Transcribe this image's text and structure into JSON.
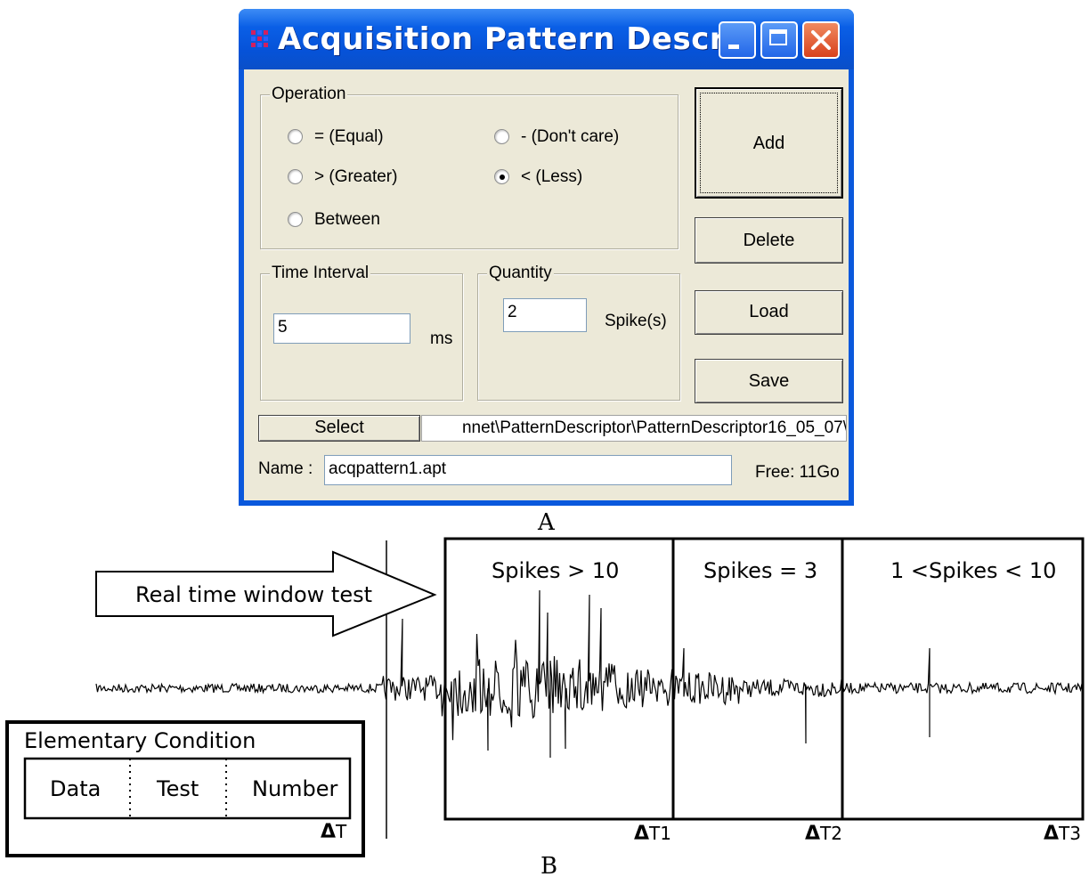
{
  "window": {
    "title": "Acquisition Pattern Descr...",
    "app_icon": "grid-app-icon",
    "controls": {
      "minimize": "minimize-icon",
      "maximize": "maximize-icon",
      "close": "close-icon"
    }
  },
  "operation": {
    "legend": "Operation",
    "options": [
      {
        "label": "= (Equal)",
        "selected": false
      },
      {
        "label": "- (Don't care)",
        "selected": false
      },
      {
        "label": "> (Greater)",
        "selected": false
      },
      {
        "label": "< (Less)",
        "selected": true
      },
      {
        "label": "Between",
        "selected": false
      }
    ]
  },
  "time_interval": {
    "legend": "Time Interval",
    "value": "5",
    "unit": "ms"
  },
  "quantity": {
    "legend": "Quantity",
    "value": "2",
    "unit": "Spike(s)"
  },
  "buttons": {
    "add": "Add",
    "delete": "Delete",
    "load": "Load",
    "save": "Save",
    "select": "Select"
  },
  "path": {
    "value": "nnet\\PatternDescriptor\\PatternDescriptor16_05_07\\"
  },
  "name": {
    "label": "Name :",
    "value": "acqpattern1.apt"
  },
  "free": "Free: 11Go",
  "captions": {
    "a": "A",
    "b": "B"
  },
  "diagram": {
    "arrow_label": "Real time window test",
    "windows": [
      "Spikes > 10",
      "Spikes = 3",
      "1 <Spikes < 10"
    ],
    "delta_symbol": "Δ",
    "delta_labels": [
      "T",
      "T1",
      "T2",
      "T3"
    ],
    "condition": {
      "title": "Elementary Condition",
      "fields": [
        "Data",
        "Test",
        "Number"
      ]
    }
  }
}
